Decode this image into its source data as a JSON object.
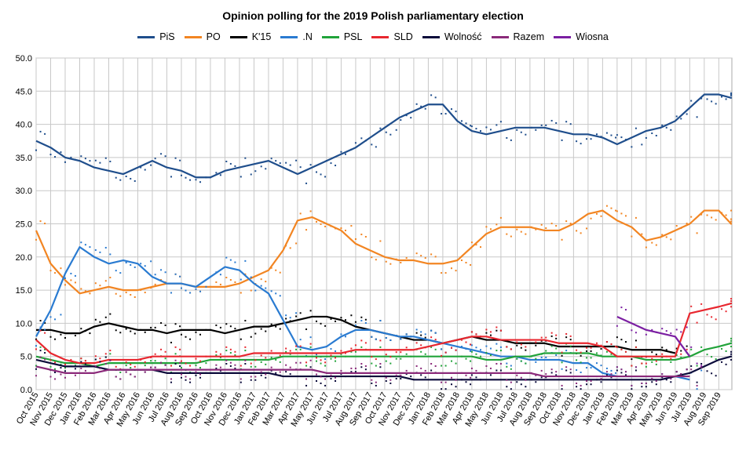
{
  "chart_data": {
    "type": "line",
    "title": "Opinion polling for the 2019 Polish parliamentary election",
    "xlabel": "",
    "ylabel": "",
    "ylim": [
      0,
      50
    ],
    "yticks": [
      "0.0",
      "5.0",
      "10.0",
      "15.0",
      "20.0",
      "25.0",
      "30.0",
      "35.0",
      "40.0",
      "45.0",
      "50.0"
    ],
    "xticks": [
      "Oct 2015",
      "Nov 2015",
      "Dec 2015",
      "Jan 2016",
      "Feb 2016",
      "Mar 2016",
      "Apr 2016",
      "May 2016",
      "Jun 2016",
      "Jul 2016",
      "Aug 2016",
      "Sep 2016",
      "Oct 2016",
      "Nov 2016",
      "Dec 2016",
      "Jan 2017",
      "Feb 2017",
      "Mar 2017",
      "Apr 2017",
      "May 2017",
      "Jun 2017",
      "Jul 2017",
      "Aug 2017",
      "Sep 2017",
      "Oct 2017",
      "Nov 2017",
      "Dec 2017",
      "Jan 2018",
      "Feb 2018",
      "Mar 2018",
      "Apr 2018",
      "May 2018",
      "Jun 2018",
      "Jul 2018",
      "Aug 2018",
      "Sep 2018",
      "Oct 2018",
      "Nov 2018",
      "Dec 2018",
      "Jan 2019",
      "Feb 2019",
      "Mar 2019",
      "Apr 2019",
      "May 2019",
      "Jun 2019",
      "Jul 2019",
      "Aug 2019",
      "Sep 2019"
    ],
    "grid": true,
    "legend_position": "top",
    "series": [
      {
        "name": "PiS",
        "color": "#1f4e8c",
        "x": [
          "2015-10",
          "2015-11",
          "2015-12",
          "2016-01",
          "2016-02",
          "2016-03",
          "2016-04",
          "2016-05",
          "2016-06",
          "2016-07",
          "2016-08",
          "2016-09",
          "2016-10",
          "2016-11",
          "2016-12",
          "2017-01",
          "2017-02",
          "2017-03",
          "2017-04",
          "2017-05",
          "2017-06",
          "2017-07",
          "2017-08",
          "2017-09",
          "2017-10",
          "2017-11",
          "2017-12",
          "2018-01",
          "2018-02",
          "2018-03",
          "2018-04",
          "2018-05",
          "2018-06",
          "2018-07",
          "2018-08",
          "2018-09",
          "2018-10",
          "2018-11",
          "2018-12",
          "2019-01",
          "2019-02",
          "2019-03",
          "2019-04",
          "2019-05",
          "2019-06",
          "2019-07",
          "2019-08",
          "2019-09",
          "2019-10"
        ],
        "values": [
          37.5,
          36.5,
          35.0,
          34.5,
          33.5,
          33.0,
          32.5,
          33.5,
          34.5,
          33.5,
          33.0,
          32.0,
          32.0,
          33.0,
          33.5,
          34.0,
          34.5,
          33.5,
          32.5,
          33.5,
          34.5,
          35.5,
          36.5,
          38.0,
          39.5,
          41.0,
          42.0,
          43.0,
          43.0,
          40.5,
          39.0,
          38.5,
          39.0,
          39.5,
          39.5,
          39.5,
          39.0,
          38.5,
          38.5,
          38.0,
          37.0,
          38.0,
          39.0,
          39.5,
          40.5,
          42.5,
          44.5,
          44.5,
          44.0
        ]
      },
      {
        "name": "PO",
        "color": "#f28522",
        "x": [
          "2015-10",
          "2015-11",
          "2015-12",
          "2016-01",
          "2016-02",
          "2016-03",
          "2016-04",
          "2016-05",
          "2016-06",
          "2016-07",
          "2016-08",
          "2016-09",
          "2016-10",
          "2016-11",
          "2016-12",
          "2017-01",
          "2017-02",
          "2017-03",
          "2017-04",
          "2017-05",
          "2017-06",
          "2017-07",
          "2017-08",
          "2017-09",
          "2017-10",
          "2017-11",
          "2017-12",
          "2018-01",
          "2018-02",
          "2018-03",
          "2018-04",
          "2018-05",
          "2018-06",
          "2018-07",
          "2018-08",
          "2018-09",
          "2018-10",
          "2018-11",
          "2018-12",
          "2019-01",
          "2019-02",
          "2019-03",
          "2019-04",
          "2019-05",
          "2019-06",
          "2019-07",
          "2019-08",
          "2019-09",
          "2019-10"
        ],
        "values": [
          24.0,
          19.0,
          16.5,
          14.5,
          15.0,
          15.5,
          15.0,
          15.0,
          15.5,
          16.0,
          16.0,
          15.5,
          15.5,
          15.5,
          16.0,
          17.0,
          18.0,
          21.0,
          25.5,
          26.0,
          25.0,
          24.0,
          22.0,
          21.0,
          20.0,
          19.5,
          19.5,
          19.0,
          19.0,
          19.5,
          21.5,
          23.5,
          24.5,
          24.5,
          24.5,
          24.0,
          24.0,
          25.0,
          26.5,
          27.0,
          25.5,
          24.5,
          22.5,
          23.0,
          24.0,
          25.0,
          27.0,
          27.0,
          25.0
        ]
      },
      {
        "name": "K'15",
        "color": "#000000",
        "x": [
          "2015-10",
          "2015-11",
          "2015-12",
          "2016-01",
          "2016-02",
          "2016-03",
          "2016-04",
          "2016-05",
          "2016-06",
          "2016-07",
          "2016-08",
          "2016-09",
          "2016-10",
          "2016-11",
          "2016-12",
          "2017-01",
          "2017-02",
          "2017-03",
          "2017-04",
          "2017-05",
          "2017-06",
          "2017-07",
          "2017-08",
          "2017-09",
          "2017-10",
          "2017-11",
          "2017-12",
          "2018-01",
          "2018-02",
          "2018-03",
          "2018-04",
          "2018-05",
          "2018-06",
          "2018-07",
          "2018-08",
          "2018-09",
          "2018-10",
          "2018-11",
          "2018-12",
          "2019-01",
          "2019-02",
          "2019-03",
          "2019-04",
          "2019-05",
          "2019-06"
        ],
        "values": [
          9.0,
          9.0,
          8.5,
          8.5,
          9.5,
          10.0,
          9.5,
          9.0,
          9.0,
          8.5,
          9.0,
          9.0,
          9.0,
          8.5,
          9.0,
          9.5,
          9.5,
          10.0,
          10.5,
          11.0,
          11.0,
          10.5,
          9.5,
          9.0,
          8.5,
          8.0,
          7.5,
          7.5,
          7.0,
          7.5,
          8.0,
          7.5,
          7.5,
          7.0,
          7.0,
          7.0,
          6.5,
          6.5,
          6.5,
          6.5,
          6.5,
          6.0,
          6.0,
          6.0,
          5.5
        ]
      },
      {
        "name": ".N",
        "color": "#2a7bd1",
        "x": [
          "2015-10",
          "2015-11",
          "2015-12",
          "2016-01",
          "2016-02",
          "2016-03",
          "2016-04",
          "2016-05",
          "2016-06",
          "2016-07",
          "2016-08",
          "2016-09",
          "2016-10",
          "2016-11",
          "2016-12",
          "2017-01",
          "2017-02",
          "2017-03",
          "2017-04",
          "2017-05",
          "2017-06",
          "2017-07",
          "2017-08",
          "2017-09",
          "2017-10",
          "2017-11",
          "2017-12",
          "2018-01",
          "2018-02",
          "2018-03",
          "2018-04",
          "2018-05",
          "2018-06",
          "2018-07",
          "2018-08",
          "2018-09",
          "2018-10",
          "2018-11",
          "2018-12",
          "2019-01",
          "2019-02",
          "2019-03",
          "2019-04",
          "2019-05",
          "2019-06",
          "2019-07"
        ],
        "values": [
          8.0,
          12.0,
          17.5,
          21.5,
          20.0,
          19.0,
          19.5,
          19.0,
          17.0,
          16.0,
          16.0,
          15.5,
          17.0,
          18.5,
          18.0,
          16.0,
          14.5,
          10.5,
          6.5,
          6.0,
          6.5,
          8.0,
          9.0,
          9.0,
          8.5,
          8.0,
          8.0,
          7.5,
          7.0,
          6.5,
          6.0,
          5.5,
          5.0,
          5.0,
          4.5,
          4.5,
          4.5,
          4.0,
          4.0,
          2.5,
          2.0,
          2.0,
          2.0,
          2.0,
          2.0,
          1.5
        ]
      },
      {
        "name": "PSL",
        "color": "#21a33a",
        "x": [
          "2015-10",
          "2015-11",
          "2015-12",
          "2016-01",
          "2016-02",
          "2016-03",
          "2016-04",
          "2016-05",
          "2016-06",
          "2016-07",
          "2016-08",
          "2016-09",
          "2016-10",
          "2016-11",
          "2016-12",
          "2017-01",
          "2017-02",
          "2017-03",
          "2017-04",
          "2017-05",
          "2017-06",
          "2017-07",
          "2017-08",
          "2017-09",
          "2017-10",
          "2017-11",
          "2017-12",
          "2018-01",
          "2018-02",
          "2018-03",
          "2018-04",
          "2018-05",
          "2018-06",
          "2018-07",
          "2018-08",
          "2018-09",
          "2018-10",
          "2018-11",
          "2018-12",
          "2019-01",
          "2019-02",
          "2019-03",
          "2019-04",
          "2019-05",
          "2019-06",
          "2019-07",
          "2019-08",
          "2019-09",
          "2019-10"
        ],
        "values": [
          5.0,
          4.5,
          4.0,
          4.0,
          3.5,
          4.0,
          4.0,
          4.0,
          4.0,
          4.0,
          4.0,
          4.0,
          4.5,
          4.5,
          4.5,
          4.5,
          4.5,
          5.0,
          5.0,
          5.0,
          5.0,
          5.0,
          5.0,
          5.0,
          5.0,
          5.0,
          5.0,
          5.0,
          5.0,
          5.0,
          5.0,
          4.5,
          4.5,
          5.0,
          5.0,
          5.5,
          5.5,
          5.5,
          5.5,
          5.0,
          5.0,
          5.0,
          4.5,
          4.5,
          4.5,
          5.0,
          6.0,
          6.5,
          7.0
        ]
      },
      {
        "name": "SLD",
        "color": "#e8272f",
        "x": [
          "2015-10",
          "2015-11",
          "2015-12",
          "2016-01",
          "2016-02",
          "2016-03",
          "2016-04",
          "2016-05",
          "2016-06",
          "2016-07",
          "2016-08",
          "2016-09",
          "2016-10",
          "2016-11",
          "2016-12",
          "2017-01",
          "2017-02",
          "2017-03",
          "2017-04",
          "2017-05",
          "2017-06",
          "2017-07",
          "2017-08",
          "2017-09",
          "2017-10",
          "2017-11",
          "2017-12",
          "2018-01",
          "2018-02",
          "2018-03",
          "2018-04",
          "2018-05",
          "2018-06",
          "2018-07",
          "2018-08",
          "2018-09",
          "2018-10",
          "2018-11",
          "2018-12",
          "2019-01",
          "2019-02",
          "2019-03",
          "2019-04",
          "2019-05",
          "2019-06",
          "2019-07",
          "2019-08",
          "2019-09",
          "2019-10"
        ],
        "values": [
          7.5,
          5.5,
          4.5,
          4.0,
          4.0,
          4.5,
          4.5,
          4.5,
          5.0,
          5.0,
          5.0,
          5.0,
          5.0,
          5.0,
          5.0,
          5.5,
          5.5,
          5.5,
          5.5,
          5.5,
          5.5,
          5.5,
          6.0,
          6.0,
          6.0,
          6.0,
          6.0,
          6.5,
          7.0,
          7.5,
          8.0,
          8.0,
          7.5,
          7.5,
          7.5,
          7.5,
          7.0,
          7.0,
          7.0,
          6.5,
          5.0,
          5.0,
          5.0,
          5.0,
          5.0,
          11.5,
          12.0,
          12.5,
          13.0
        ]
      },
      {
        "name": "Wolność",
        "color": "#0a0a3a",
        "x": [
          "2015-10",
          "2015-11",
          "2015-12",
          "2016-01",
          "2016-02",
          "2016-03",
          "2016-04",
          "2016-05",
          "2016-06",
          "2016-07",
          "2016-08",
          "2016-09",
          "2016-10",
          "2016-11",
          "2016-12",
          "2017-01",
          "2017-02",
          "2017-03",
          "2017-04",
          "2017-05",
          "2017-06",
          "2017-07",
          "2017-08",
          "2017-09",
          "2017-10",
          "2017-11",
          "2017-12",
          "2018-01",
          "2018-02",
          "2018-03",
          "2018-04",
          "2018-05",
          "2018-06",
          "2018-07",
          "2018-08",
          "2018-09",
          "2018-10",
          "2018-11",
          "2018-12",
          "2019-01",
          "2019-02",
          "2019-03",
          "2019-04",
          "2019-05",
          "2019-06",
          "2019-07",
          "2019-08",
          "2019-09",
          "2019-10"
        ],
        "values": [
          4.5,
          4.0,
          3.5,
          3.5,
          3.5,
          3.0,
          3.0,
          3.0,
          3.0,
          2.5,
          2.5,
          2.5,
          2.5,
          2.5,
          2.5,
          2.5,
          2.5,
          2.0,
          2.0,
          2.0,
          2.0,
          2.0,
          2.0,
          2.0,
          2.0,
          2.0,
          1.5,
          1.5,
          1.5,
          1.5,
          1.5,
          1.5,
          1.5,
          1.5,
          1.5,
          1.5,
          1.5,
          1.5,
          1.5,
          1.5,
          1.5,
          1.5,
          1.5,
          1.5,
          2.0,
          2.5,
          3.5,
          4.5,
          5.0
        ]
      },
      {
        "name": "Razem",
        "color": "#8b2a7a",
        "x": [
          "2015-10",
          "2015-11",
          "2015-12",
          "2016-01",
          "2016-02",
          "2016-03",
          "2016-04",
          "2016-05",
          "2016-06",
          "2016-07",
          "2016-08",
          "2016-09",
          "2016-10",
          "2016-11",
          "2016-12",
          "2017-01",
          "2017-02",
          "2017-03",
          "2017-04",
          "2017-05",
          "2017-06",
          "2017-07",
          "2017-08",
          "2017-09",
          "2017-10",
          "2017-11",
          "2017-12",
          "2018-01",
          "2018-02",
          "2018-03",
          "2018-04",
          "2018-05",
          "2018-06",
          "2018-07",
          "2018-08",
          "2018-09",
          "2018-10",
          "2018-11",
          "2018-12",
          "2019-01",
          "2019-02",
          "2019-03",
          "2019-04",
          "2019-05",
          "2019-06",
          "2019-07"
        ],
        "values": [
          3.5,
          3.0,
          2.5,
          2.5,
          2.5,
          3.0,
          3.0,
          3.0,
          3.0,
          3.0,
          3.0,
          3.0,
          3.0,
          3.0,
          3.0,
          3.0,
          3.0,
          3.0,
          3.0,
          3.0,
          2.5,
          2.5,
          2.5,
          2.5,
          2.5,
          2.5,
          2.5,
          2.5,
          2.5,
          2.5,
          2.5,
          2.5,
          2.5,
          2.5,
          2.5,
          2.0,
          2.0,
          2.0,
          2.0,
          2.0,
          2.0,
          2.0,
          2.0,
          2.0,
          2.0,
          2.0
        ]
      },
      {
        "name": "Wiosna",
        "color": "#7b1fa2",
        "x": [
          "2019-02",
          "2019-03",
          "2019-04",
          "2019-05",
          "2019-06",
          "2019-07"
        ],
        "values": [
          11.0,
          10.0,
          9.0,
          8.5,
          8.0,
          5.0
        ]
      }
    ]
  }
}
